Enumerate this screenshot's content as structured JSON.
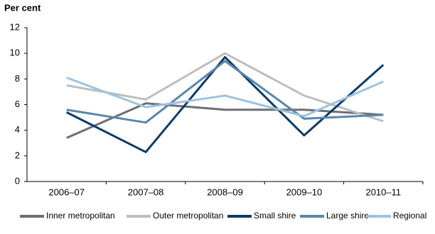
{
  "chart_data": {
    "type": "line",
    "ylabel": "Per cent",
    "categories": [
      "2006–07",
      "2007–08",
      "2008–09",
      "2009–10",
      "2010–11"
    ],
    "series": [
      {
        "name": "Inner metropolitan",
        "color": "#6d6e71",
        "values": [
          3.4,
          6.1,
          5.6,
          5.6,
          5.2
        ]
      },
      {
        "name": "Outer metropolitan",
        "color": "#bcbec0",
        "values": [
          7.5,
          6.4,
          10.0,
          6.7,
          4.7
        ]
      },
      {
        "name": "Small shire",
        "color": "#0b3a6b",
        "values": [
          5.4,
          2.3,
          9.7,
          3.6,
          9.1
        ]
      },
      {
        "name": "Large shire",
        "color": "#5a87a9",
        "values": [
          5.6,
          4.6,
          9.4,
          4.9,
          5.2
        ]
      },
      {
        "name": "Regional",
        "color": "#9dc3e0",
        "values": [
          8.1,
          5.8,
          6.7,
          5.1,
          7.8
        ]
      }
    ],
    "ylim": [
      0,
      12
    ],
    "yticks": [
      0,
      2,
      4,
      6,
      8,
      10,
      12
    ],
    "grid": false,
    "legend": "bottom"
  }
}
